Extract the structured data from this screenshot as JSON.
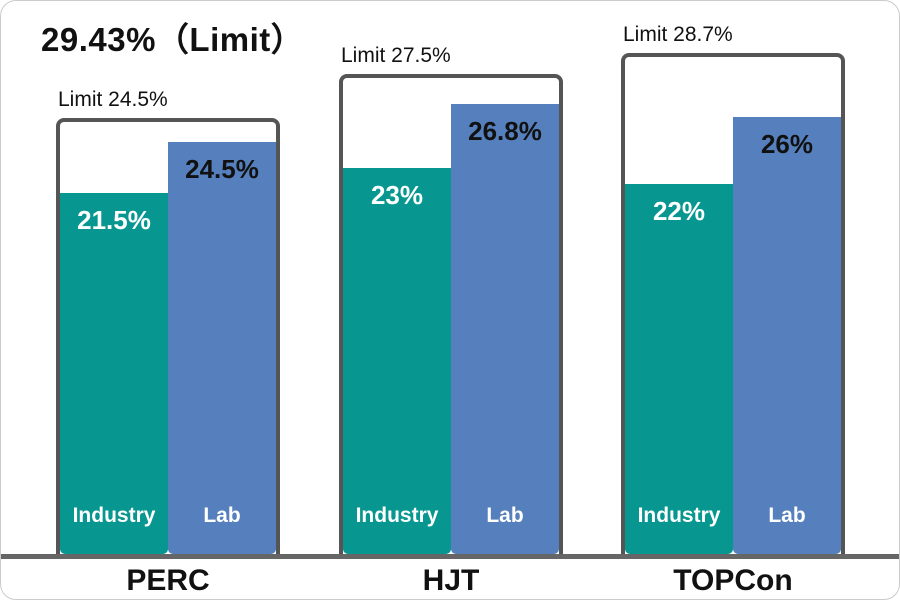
{
  "title": "29.43%（Limit）",
  "chart_data": {
    "type": "bar",
    "unit": "%",
    "title": "29.43%（Limit）",
    "overall_limit": 29.43,
    "axes": "none",
    "legend_position": "in-bar",
    "ylim": [
      0,
      33
    ],
    "series_names": [
      "Industry",
      "Lab"
    ],
    "groups": [
      {
        "label": "PERC",
        "limit_label": "Limit 24.5%",
        "limit": 24.5,
        "industry": 21.5,
        "lab": 24.5,
        "industry_label": "21.5%",
        "lab_label": "24.5%"
      },
      {
        "label": "HJT",
        "limit_label": "Limit 27.5%",
        "limit": 27.5,
        "industry": 23,
        "lab": 26.8,
        "industry_label": "23%",
        "lab_label": "26.8%"
      },
      {
        "label": "TOPCon",
        "limit_label": "Limit 28.7%",
        "limit": 28.7,
        "industry": 22,
        "lab": 26,
        "industry_label": "22%",
        "lab_label": "26%"
      }
    ],
    "colors": {
      "industry": "#089790",
      "lab": "#5580BD",
      "box_border": "#555555",
      "baseline": "#666666",
      "industry_value_text": "#ffffff",
      "lab_value_text": "#111111"
    }
  }
}
